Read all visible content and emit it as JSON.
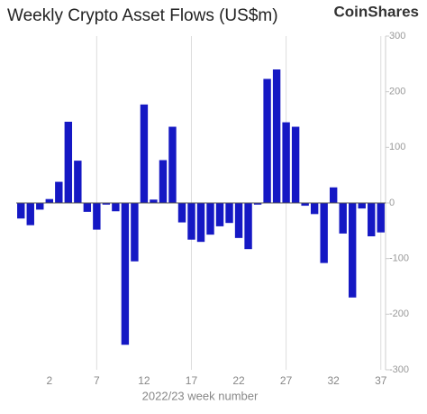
{
  "chart_data": {
    "type": "bar",
    "title": "Weekly Crypto Asset Flows (US$m)",
    "brand": "CoinShares",
    "x_label": "2022/23 week number",
    "categories": [
      null,
      null,
      null,
      "2",
      null,
      null,
      null,
      null,
      "7",
      null,
      null,
      null,
      null,
      "12",
      null,
      null,
      null,
      null,
      "17",
      null,
      null,
      null,
      null,
      "22",
      null,
      null,
      null,
      null,
      "27",
      null,
      null,
      null,
      null,
      "32",
      null,
      null,
      null,
      null,
      "37"
    ],
    "values": [
      -28,
      -40,
      -12,
      7,
      38,
      146,
      76,
      -16,
      -48,
      -3,
      -15,
      -255,
      -105,
      177,
      6,
      77,
      137,
      -35,
      -66,
      -70,
      -57,
      -42,
      -36,
      -63,
      -83,
      -3,
      223,
      240,
      145,
      137,
      -5,
      -20,
      -108,
      28,
      -55,
      -170,
      -10,
      -60,
      -53
    ],
    "color": "#1518c4",
    "ylim": [
      -300,
      300
    ],
    "yticks": [
      -300,
      -200,
      -100,
      0,
      100,
      200,
      300
    ]
  }
}
